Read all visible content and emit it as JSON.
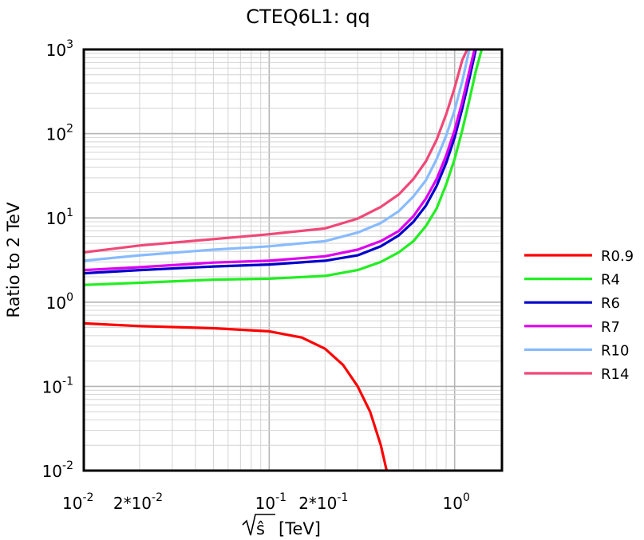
{
  "chart_data": {
    "type": "line",
    "title": "CTEQ6L1: qq",
    "xlabel": "√ŝ [TeV]",
    "xlabel_unit": "[TeV]",
    "ylabel": "Ratio to 2 TeV",
    "x_scale": "log",
    "y_scale": "log",
    "xlim": [
      0.01,
      1.8
    ],
    "ylim": [
      0.01,
      1000
    ],
    "grid": true,
    "legend_position": "right",
    "x_ticks": [
      {
        "value": 0.01,
        "base": "10",
        "exp": "-2"
      },
      {
        "value": 0.02,
        "base": "2*10",
        "exp": "-2"
      },
      {
        "value": 0.1,
        "base": "10",
        "exp": "-1"
      },
      {
        "value": 0.2,
        "base": "2*10",
        "exp": "-1"
      },
      {
        "value": 1,
        "base": "10",
        "exp": "0"
      }
    ],
    "y_ticks": [
      {
        "value": 1000,
        "base": "10",
        "exp": "3"
      },
      {
        "value": 100,
        "base": "10",
        "exp": "2"
      },
      {
        "value": 10,
        "base": "10",
        "exp": "1"
      },
      {
        "value": 1,
        "base": "10",
        "exp": "0"
      },
      {
        "value": 0.1,
        "base": "10",
        "exp": "-1"
      },
      {
        "value": 0.01,
        "base": "10",
        "exp": "-2"
      }
    ],
    "series": [
      {
        "name": "R0.9",
        "color": "#ff0000",
        "x": [
          0.01,
          0.02,
          0.05,
          0.1,
          0.15,
          0.2,
          0.25,
          0.3,
          0.35,
          0.4,
          0.43
        ],
        "y": [
          0.56,
          0.52,
          0.49,
          0.45,
          0.38,
          0.28,
          0.18,
          0.1,
          0.05,
          0.02,
          0.01
        ]
      },
      {
        "name": "R4",
        "color": "#22ee22",
        "x": [
          0.01,
          0.02,
          0.05,
          0.1,
          0.2,
          0.3,
          0.4,
          0.5,
          0.6,
          0.7,
          0.8,
          0.9,
          1.0,
          1.1,
          1.2,
          1.3,
          1.4
        ],
        "y": [
          1.6,
          1.7,
          1.85,
          1.9,
          2.05,
          2.4,
          3.0,
          3.9,
          5.3,
          8.0,
          13,
          25,
          50,
          110,
          250,
          550,
          1000
        ]
      },
      {
        "name": "R6",
        "color": "#0000cc",
        "x": [
          0.01,
          0.02,
          0.05,
          0.1,
          0.2,
          0.3,
          0.4,
          0.5,
          0.6,
          0.7,
          0.8,
          0.9,
          1.0,
          1.1,
          1.2,
          1.3
        ],
        "y": [
          2.2,
          2.4,
          2.65,
          2.8,
          3.1,
          3.6,
          4.6,
          6.2,
          9.0,
          14,
          24,
          45,
          90,
          200,
          450,
          1000
        ]
      },
      {
        "name": "R7",
        "color": "#dd00ee",
        "x": [
          0.01,
          0.02,
          0.05,
          0.1,
          0.2,
          0.3,
          0.4,
          0.5,
          0.6,
          0.7,
          0.8,
          0.9,
          1.0,
          1.1,
          1.2,
          1.28
        ],
        "y": [
          2.4,
          2.6,
          2.95,
          3.1,
          3.5,
          4.2,
          5.3,
          7.0,
          10.5,
          17,
          29,
          55,
          110,
          240,
          550,
          1000
        ]
      },
      {
        "name": "R10",
        "color": "#88bbff",
        "x": [
          0.01,
          0.02,
          0.05,
          0.1,
          0.2,
          0.3,
          0.4,
          0.5,
          0.6,
          0.7,
          0.8,
          0.9,
          1.0,
          1.1,
          1.2
        ],
        "y": [
          3.1,
          3.6,
          4.2,
          4.6,
          5.3,
          6.7,
          8.7,
          12,
          18,
          28,
          50,
          95,
          190,
          420,
          1000
        ]
      },
      {
        "name": "R14",
        "color": "#f04878",
        "x": [
          0.01,
          0.02,
          0.05,
          0.1,
          0.2,
          0.3,
          0.4,
          0.5,
          0.6,
          0.7,
          0.8,
          0.9,
          1.0,
          1.1,
          1.17
        ],
        "y": [
          3.9,
          4.7,
          5.6,
          6.4,
          7.5,
          9.8,
          13.5,
          19,
          29,
          47,
          85,
          170,
          350,
          750,
          1000
        ]
      }
    ]
  }
}
